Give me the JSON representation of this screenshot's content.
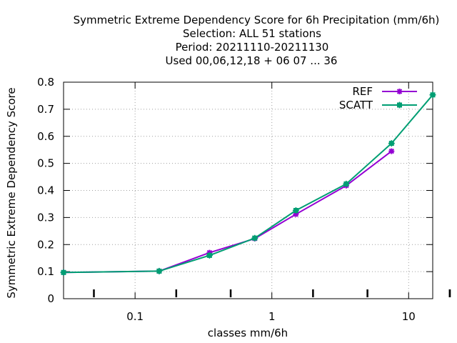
{
  "chart_data": {
    "type": "line",
    "title_lines": [
      "Symmetric Extreme Dependency Score  for 6h Precipitation (mm/6h)",
      "Selection: ALL     51 stations",
      "Period: 20211110-20211130",
      "Used  00,06,12,18 + 06 07 ... 36"
    ],
    "xlabel": "classes mm/6h",
    "ylabel": "Symmetric Extreme Dependency Score",
    "xscale": "log",
    "xlim": [
      0.03,
      15
    ],
    "ylim": [
      0,
      0.8
    ],
    "x_ticks": [
      0.1,
      1,
      10
    ],
    "x_tick_labels": [
      "0.1",
      "1",
      "10"
    ],
    "y_ticks": [
      0,
      0.1,
      0.2,
      0.3,
      0.4,
      0.5,
      0.6,
      0.7,
      0.8
    ],
    "y_tick_labels": [
      "0",
      "0.1",
      "0.2",
      "0.3",
      "0.4",
      "0.5",
      "0.6",
      "0.7",
      "0.8"
    ],
    "grid": true,
    "legend_position": "top-right",
    "series": [
      {
        "name": "REF",
        "color": "#9400D3",
        "x": [
          0.03,
          0.15,
          0.35,
          0.75,
          1.5,
          3.5,
          7.5
        ],
        "y": [
          0.097,
          0.102,
          0.17,
          0.222,
          0.312,
          0.418,
          0.545
        ]
      },
      {
        "name": "SCATT",
        "color": "#009E73",
        "x": [
          0.03,
          0.15,
          0.35,
          0.75,
          1.5,
          3.5,
          7.5,
          15
        ],
        "y": [
          0.097,
          0.102,
          0.16,
          0.224,
          0.326,
          0.424,
          0.574,
          0.753
        ]
      }
    ]
  }
}
